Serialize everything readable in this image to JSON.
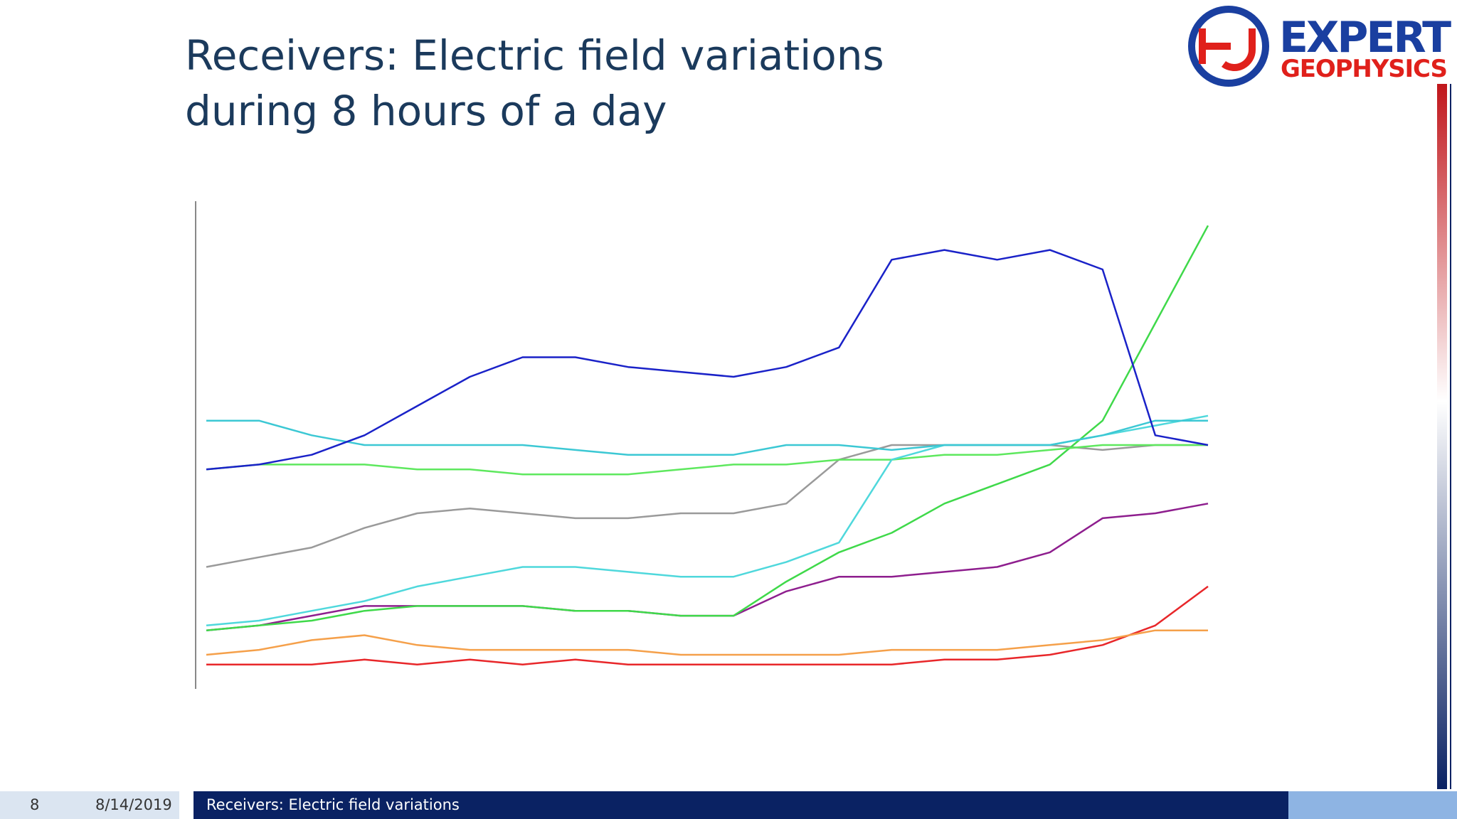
{
  "slide": {
    "title_lines": [
      "Receivers: Electric field variations",
      "during 8 hours of a day"
    ],
    "logo": {
      "line1": "EXPERT",
      "line2": "GEOPHYSICS"
    },
    "footer": {
      "page": "8",
      "date": "8/14/2019",
      "text": "Receivers: Electric field variations"
    }
  },
  "chart_data": {
    "type": "line",
    "ylim": [
      0,
      100
    ],
    "series": [
      {
        "color": "#e8272a",
        "values": [
          5,
          5,
          5,
          6,
          5,
          6,
          5,
          6,
          5,
          5,
          5,
          5,
          5,
          5,
          6,
          6,
          7,
          9,
          13,
          21
        ]
      },
      {
        "color": "#f5a04a",
        "values": [
          7,
          8,
          10,
          11,
          9,
          8,
          8,
          8,
          8,
          7,
          7,
          7,
          7,
          8,
          8,
          8,
          9,
          10,
          12,
          12
        ]
      },
      {
        "color": "#8e1e8e",
        "values": [
          12,
          13,
          15,
          17,
          17,
          17,
          17,
          16,
          16,
          15,
          15,
          20,
          23,
          23,
          24,
          25,
          28,
          35,
          36,
          38
        ]
      },
      {
        "color": "#9a9a9a",
        "values": [
          25,
          27,
          29,
          33,
          36,
          37,
          36,
          35,
          35,
          36,
          36,
          38,
          47,
          50,
          50,
          50,
          50,
          49,
          50,
          50
        ]
      },
      {
        "color": "#3fd94a",
        "values": [
          12,
          13,
          14,
          16,
          17,
          17,
          17,
          16,
          16,
          15,
          15,
          22,
          28,
          32,
          38,
          42,
          46,
          55,
          75,
          95
        ]
      },
      {
        "color": "#5ee85e",
        "values": [
          45,
          46,
          46,
          46,
          45,
          45,
          44,
          44,
          44,
          45,
          46,
          46,
          47,
          47,
          48,
          48,
          49,
          50,
          50,
          50
        ]
      },
      {
        "color": "#4fd8dc",
        "values": [
          13,
          14,
          16,
          18,
          21,
          23,
          25,
          25,
          24,
          23,
          23,
          26,
          30,
          47,
          50,
          50,
          50,
          52,
          54,
          56
        ]
      },
      {
        "color": "#3cc8d4",
        "values": [
          55,
          55,
          52,
          50,
          50,
          50,
          50,
          49,
          48,
          48,
          48,
          50,
          50,
          49,
          50,
          50,
          50,
          52,
          55,
          55
        ]
      },
      {
        "color": "#1a22c8",
        "values": [
          45,
          46,
          48,
          52,
          58,
          64,
          68,
          68,
          66,
          65,
          64,
          66,
          70,
          88,
          90,
          88,
          90,
          86,
          52,
          50
        ]
      }
    ]
  }
}
